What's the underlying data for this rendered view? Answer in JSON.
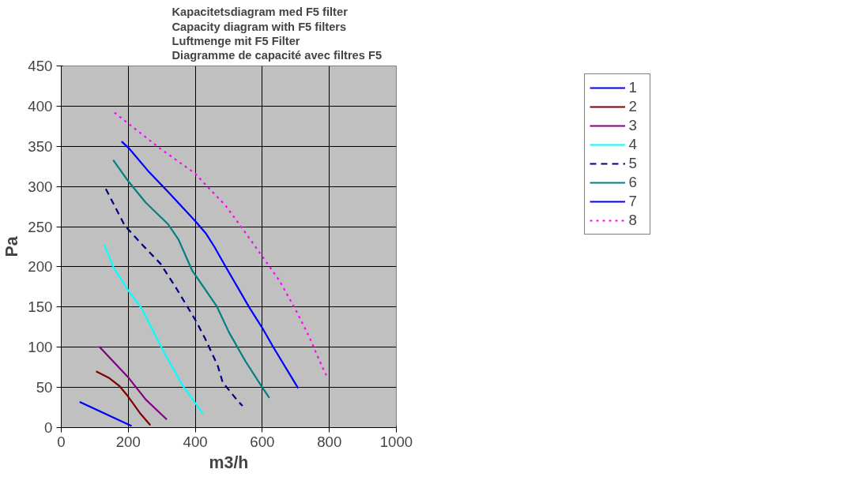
{
  "chart_data": {
    "type": "line",
    "title": "Kapacitetsdiagram med F5 filter\nCapacity diagram with F5 filters\nLuftmenge mit F5 Filter\nDiagramme de capacité avec filtres F5",
    "xlabel": "m3/h",
    "ylabel": "Pa",
    "xlim": [
      0,
      1000
    ],
    "ylim": [
      0,
      450
    ],
    "xticks": [
      0,
      200,
      400,
      600,
      800,
      1000
    ],
    "yticks": [
      0,
      50,
      100,
      150,
      200,
      250,
      300,
      350,
      400,
      450
    ],
    "grid": true,
    "legend": "right",
    "marker": "none",
    "series": [
      {
        "name": "1",
        "color": "#0000ff",
        "line_style": "solid",
        "x": [
          55,
          210
        ],
        "values": [
          32,
          2
        ]
      },
      {
        "name": "2",
        "color": "#800000",
        "line_style": "solid",
        "x": [
          104,
          142,
          173,
          199,
          235,
          266
        ],
        "values": [
          70,
          62,
          52,
          39,
          18,
          3
        ]
      },
      {
        "name": "3",
        "color": "#800080",
        "line_style": "solid",
        "x": [
          113,
          199,
          252,
          315
        ],
        "values": [
          101,
          63,
          35,
          10
        ]
      },
      {
        "name": "4",
        "color": "#00ffff",
        "line_style": "solid",
        "x": [
          129,
          155,
          201,
          239,
          306,
          363,
          423
        ],
        "values": [
          227,
          200,
          170,
          149,
          94,
          52,
          17
        ]
      },
      {
        "name": "5",
        "color": "#000080",
        "line_style": "dashed",
        "x": [
          133,
          190,
          243,
          296,
          341,
          403,
          429,
          467,
          482,
          500,
          527,
          541
        ],
        "values": [
          297,
          251,
          227,
          204,
          175,
          132,
          111,
          77,
          56,
          47,
          33,
          27
        ]
      },
      {
        "name": "6",
        "color": "#008080",
        "line_style": "solid",
        "x": [
          155,
          201,
          252,
          319,
          350,
          390,
          464,
          500,
          549,
          600,
          621
        ],
        "values": [
          333,
          306,
          280,
          253,
          234,
          196,
          151,
          119,
          83,
          50,
          37
        ]
      },
      {
        "name": "7",
        "color": "#0000ff",
        "line_style": "solid",
        "x": [
          180,
          201,
          262,
          324,
          400,
          431,
          457,
          491,
          562,
          600,
          633,
          707
        ],
        "values": [
          356,
          348,
          318,
          291,
          257,
          242,
          225,
          200,
          149,
          124,
          100,
          49
        ]
      },
      {
        "name": "8",
        "color": "#ff00ff",
        "line_style": "dotted",
        "x": [
          159,
          201,
          296,
          400,
          429,
          491,
          540,
          600,
          651,
          704,
          740,
          771,
          791
        ],
        "values": [
          392,
          378,
          347,
          316,
          303,
          276,
          248,
          213,
          183,
          143,
          113,
          83,
          65
        ]
      }
    ]
  }
}
